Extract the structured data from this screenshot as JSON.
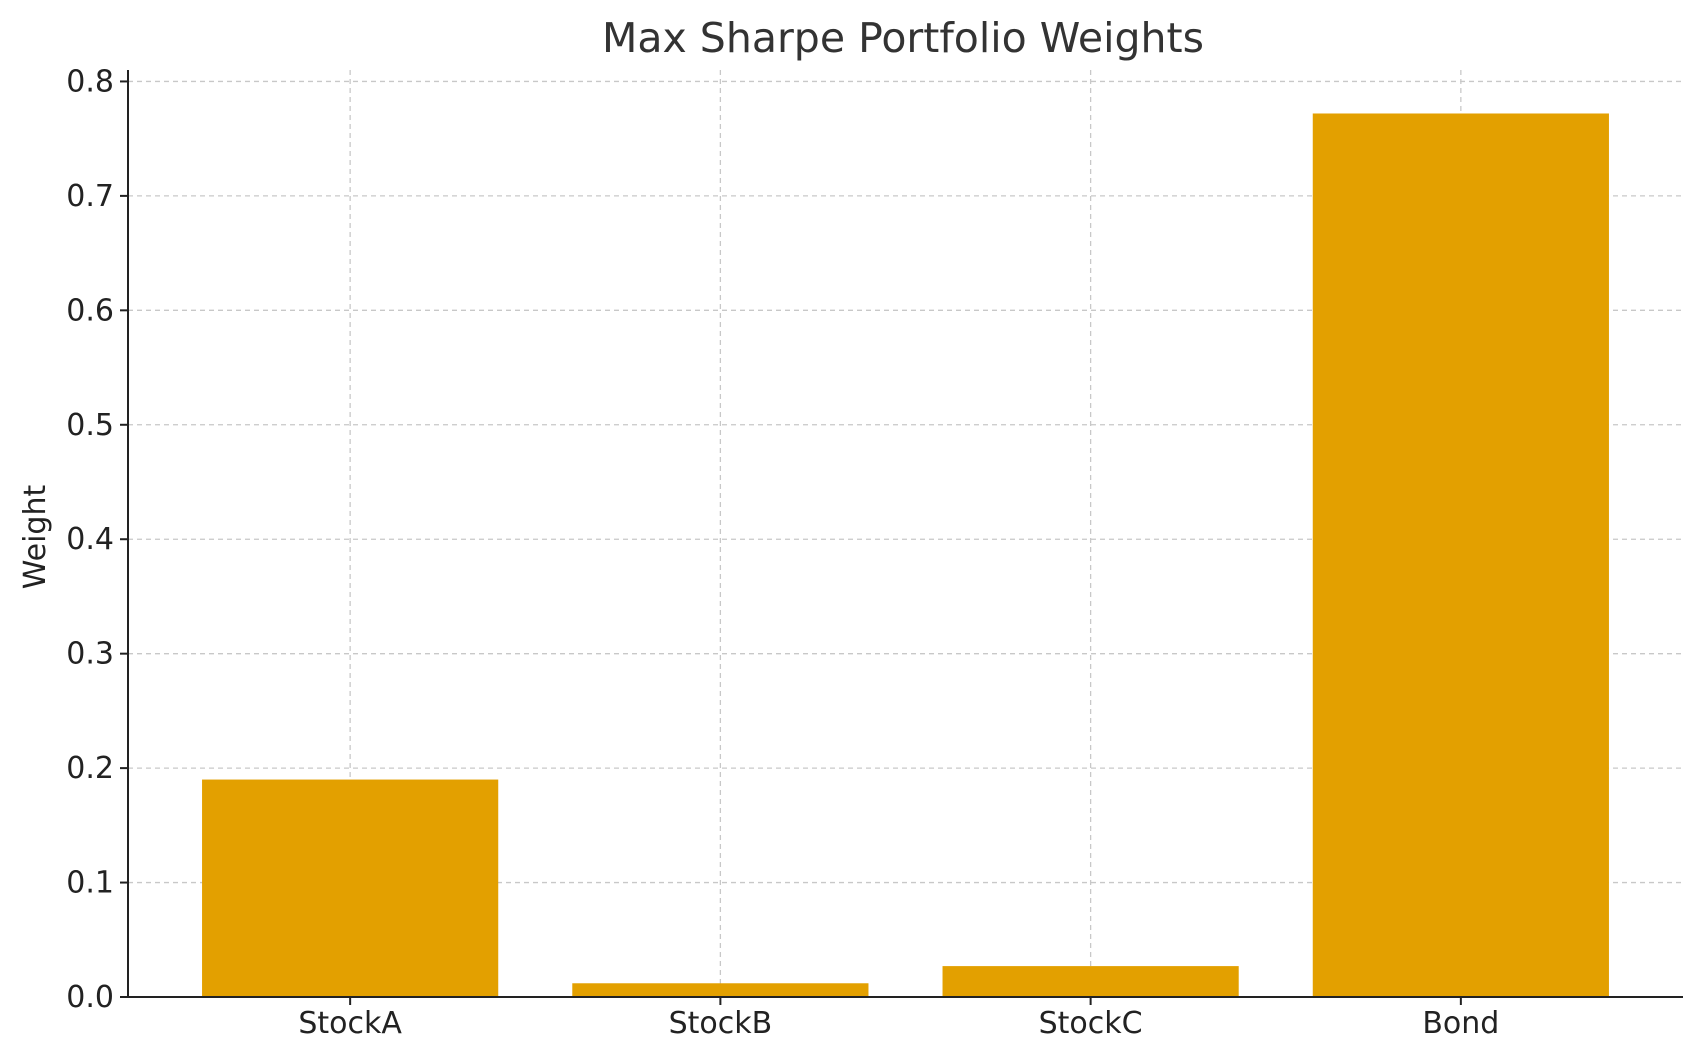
{
  "chart_data": {
    "type": "bar",
    "title": "Max Sharpe Portfolio Weights",
    "xlabel": "",
    "ylabel": "Weight",
    "categories": [
      "StockA",
      "StockB",
      "StockC",
      "Bond"
    ],
    "values": [
      0.19,
      0.012,
      0.027,
      0.772
    ],
    "ylim": [
      0,
      0.81
    ],
    "yticks": [
      0.0,
      0.1,
      0.2,
      0.3,
      0.4,
      0.5,
      0.6,
      0.7,
      0.8
    ],
    "ytick_labels": [
      "0.0",
      "0.1",
      "0.2",
      "0.3",
      "0.4",
      "0.5",
      "0.6",
      "0.7",
      "0.8"
    ],
    "grid": true,
    "bar_color": "#E3A000"
  }
}
